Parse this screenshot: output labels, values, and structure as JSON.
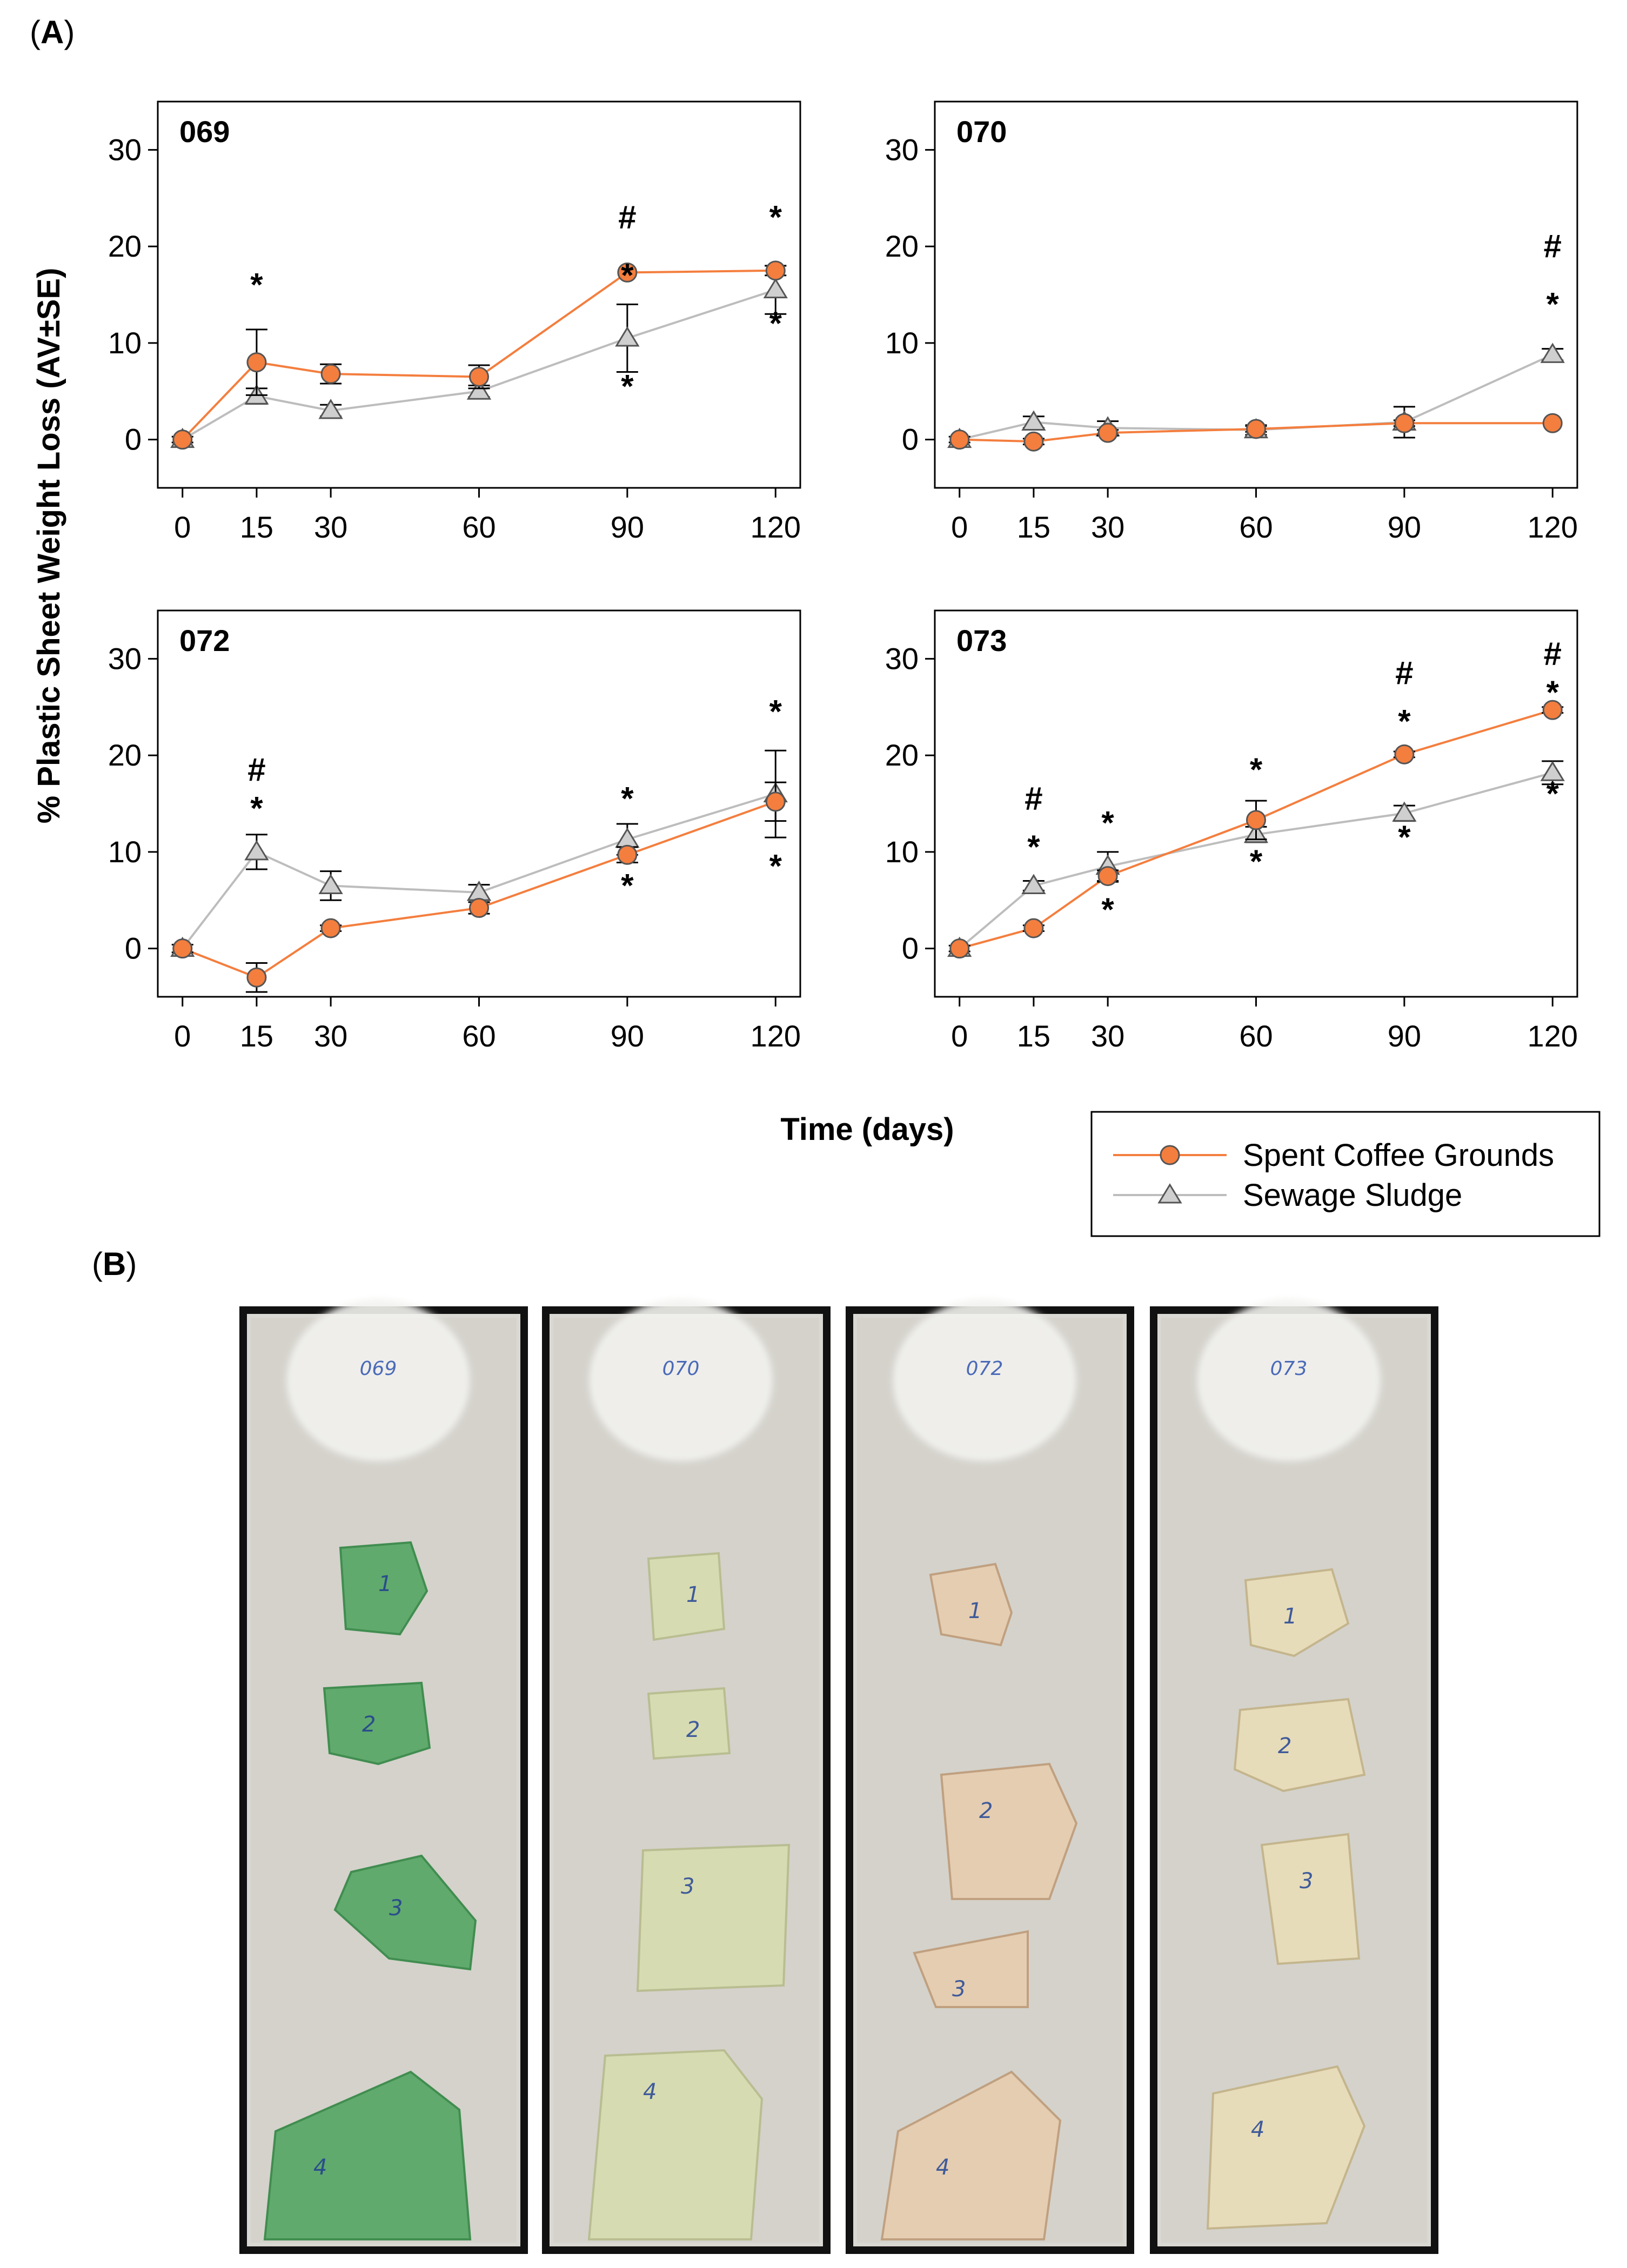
{
  "panel_a_label": "A",
  "panel_b_label": "B",
  "shared_ylabel": "% Plastic Sheet Weight Loss (AV±SE)",
  "shared_xlabel": "Time (days)",
  "legend": {
    "coffee": "Spent Coffee Grounds",
    "sludge": "Sewage Sludge"
  },
  "colors": {
    "coffee": "#f47e3e",
    "sludge": "#bdbdbd",
    "marker_edge": "#555555",
    "axis": "#000000"
  },
  "chart_data": [
    {
      "type": "line",
      "title": "069",
      "x": [
        0,
        15,
        30,
        60,
        90,
        120
      ],
      "xticks": [
        0,
        15,
        30,
        60,
        90,
        120
      ],
      "yticks": [
        0,
        10,
        20,
        30
      ],
      "xlim": [
        -5,
        125
      ],
      "ylim": [
        -5,
        35
      ],
      "series": [
        {
          "name": "Spent Coffee Grounds",
          "values": [
            0,
            8,
            6.8,
            6.5,
            17.3,
            17.5
          ],
          "err": [
            0,
            3.4,
            1.0,
            1.2,
            0,
            0.5
          ]
        },
        {
          "name": "Sewage Sludge",
          "values": [
            0,
            4.5,
            3,
            5,
            10.5,
            15.5
          ],
          "err": [
            0.3,
            0.8,
            0.6,
            0.6,
            3.5,
            2.5
          ]
        }
      ],
      "annotations": [
        {
          "x": 15,
          "y": 16,
          "text": "*"
        },
        {
          "x": 90,
          "y": 23,
          "text": "#"
        },
        {
          "x": 90,
          "y": 17,
          "text": "*"
        },
        {
          "x": 90,
          "y": 5.5,
          "text": "*"
        },
        {
          "x": 120,
          "y": 23,
          "text": "*"
        },
        {
          "x": 120,
          "y": 12,
          "text": "*"
        }
      ]
    },
    {
      "type": "line",
      "title": "070",
      "x": [
        0,
        15,
        30,
        60,
        90,
        120
      ],
      "xticks": [
        0,
        15,
        30,
        60,
        90,
        120
      ],
      "yticks": [
        0,
        10,
        20,
        30
      ],
      "xlim": [
        -5,
        125
      ],
      "ylim": [
        -5,
        35
      ],
      "series": [
        {
          "name": "Spent Coffee Grounds",
          "values": [
            0,
            -0.2,
            0.7,
            1.1,
            1.7,
            1.7
          ],
          "err": [
            0,
            0.3,
            0.3,
            0.3,
            0.3,
            0
          ]
        },
        {
          "name": "Sewage Sludge",
          "values": [
            0,
            1.8,
            1.2,
            1,
            1.8,
            8.8
          ],
          "err": [
            0.3,
            0.6,
            0.7,
            0.5,
            1.6,
            0.6
          ]
        }
      ],
      "annotations": [
        {
          "x": 120,
          "y": 20,
          "text": "#"
        },
        {
          "x": 120,
          "y": 14,
          "text": "*"
        }
      ]
    },
    {
      "type": "line",
      "title": "072",
      "x": [
        0,
        15,
        30,
        60,
        90,
        120
      ],
      "xticks": [
        0,
        15,
        30,
        60,
        90,
        120
      ],
      "yticks": [
        0,
        10,
        20,
        30
      ],
      "xlim": [
        -5,
        125
      ],
      "ylim": [
        -5,
        35
      ],
      "series": [
        {
          "name": "Spent Coffee Grounds",
          "values": [
            0,
            -3,
            2.1,
            4.2,
            9.7,
            15.2
          ],
          "err": [
            0,
            1.5,
            0.3,
            0.6,
            0.8,
            2.0
          ]
        },
        {
          "name": "Sewage Sludge",
          "values": [
            0,
            10,
            6.5,
            5.8,
            11.3,
            16
          ],
          "err": [
            0.4,
            1.8,
            1.5,
            0.8,
            1.6,
            4.5
          ]
        }
      ],
      "annotations": [
        {
          "x": 15,
          "y": 18.5,
          "text": "#"
        },
        {
          "x": 15,
          "y": 14.5,
          "text": "*"
        },
        {
          "x": 90,
          "y": 15.5,
          "text": "*"
        },
        {
          "x": 90,
          "y": 6.5,
          "text": "*"
        },
        {
          "x": 120,
          "y": 24.5,
          "text": "*"
        },
        {
          "x": 120,
          "y": 8.5,
          "text": "*"
        }
      ]
    },
    {
      "type": "line",
      "title": "073",
      "x": [
        0,
        15,
        30,
        60,
        90,
        120
      ],
      "xticks": [
        0,
        15,
        30,
        60,
        90,
        120
      ],
      "yticks": [
        0,
        10,
        20,
        30
      ],
      "xlim": [
        -5,
        125
      ],
      "ylim": [
        -5,
        35
      ],
      "series": [
        {
          "name": "Spent Coffee Grounds",
          "values": [
            0,
            2.1,
            7.5,
            13.3,
            20.1,
            24.7
          ],
          "err": [
            0,
            0.3,
            0.6,
            2.0,
            0.3,
            0.3
          ]
        },
        {
          "name": "Sewage Sludge",
          "values": [
            0,
            6.5,
            8.5,
            11.8,
            14,
            18.2
          ],
          "err": [
            0.3,
            0.5,
            1.5,
            0.8,
            0.8,
            1.2
          ]
        }
      ],
      "annotations": [
        {
          "x": 15,
          "y": 15.5,
          "text": "#"
        },
        {
          "x": 15,
          "y": 10.5,
          "text": "*"
        },
        {
          "x": 30,
          "y": 13,
          "text": "*"
        },
        {
          "x": 30,
          "y": 4,
          "text": "*"
        },
        {
          "x": 60,
          "y": 18.5,
          "text": "*"
        },
        {
          "x": 60,
          "y": 9,
          "text": "*"
        },
        {
          "x": 90,
          "y": 28.5,
          "text": "#"
        },
        {
          "x": 90,
          "y": 23.5,
          "text": "*"
        },
        {
          "x": 90,
          "y": 11.5,
          "text": "*"
        },
        {
          "x": 120,
          "y": 30.5,
          "text": "#"
        },
        {
          "x": 120,
          "y": 26.5,
          "text": "*"
        },
        {
          "x": 120,
          "y": 16,
          "text": "*"
        }
      ]
    }
  ],
  "photos": [
    {
      "caption": "069",
      "tint": "green",
      "sheets": [
        "1",
        "2",
        "3",
        "4"
      ]
    },
    {
      "caption": "070",
      "tint": "light",
      "sheets": [
        "1",
        "2",
        "3",
        "4"
      ]
    },
    {
      "caption": "072",
      "tint": "tan",
      "sheets": [
        "1",
        "2",
        "3",
        "4"
      ]
    },
    {
      "caption": "073",
      "tint": "cream",
      "sheets": [
        "1",
        "2",
        "3",
        "4"
      ]
    }
  ]
}
